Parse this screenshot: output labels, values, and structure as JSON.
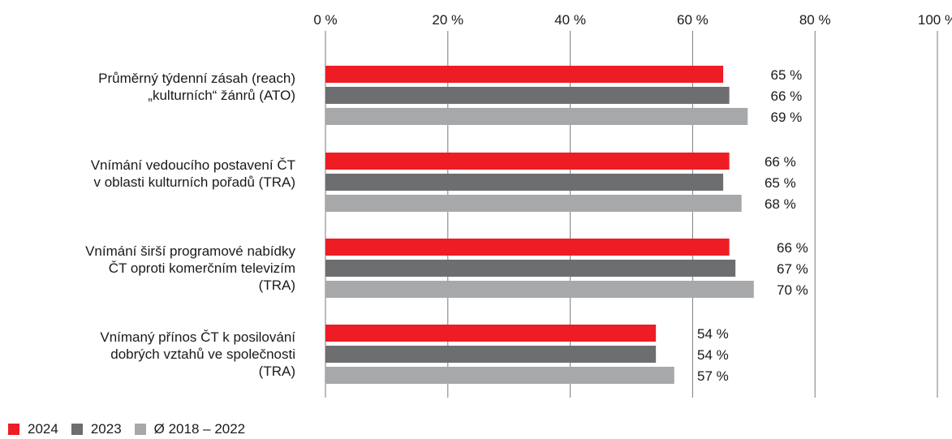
{
  "chart_data": {
    "type": "bar",
    "orientation": "horizontal",
    "x_ticks": [
      "0 %",
      "20 %",
      "40 %",
      "60 %",
      "80 %",
      "100 %"
    ],
    "x_tick_values": [
      0,
      20,
      40,
      60,
      80,
      100
    ],
    "xlim": [
      0,
      100
    ],
    "grid": true,
    "legend_position": "bottom-left",
    "categories": [
      [
        "Průměrný týdenní zásah (reach)",
        "„kulturních“ žánrů (ATO)"
      ],
      [
        "Vnímání vedoucího postavení ČT",
        "v oblasti kulturních pořadů (TRA)"
      ],
      [
        "Vnímání širší programové nabídky",
        "ČT oproti komerčním televizím",
        "(TRA)"
      ],
      [
        "Vnímaný přínos ČT k posilování",
        "dobrých vztahů ve společnosti",
        "(TRA)"
      ]
    ],
    "series": [
      {
        "name": "2024",
        "color": "#ee1c25",
        "values": [
          65,
          66,
          66,
          54
        ],
        "labels": [
          "65 %",
          "66 %",
          "66 %",
          "54 %"
        ]
      },
      {
        "name": "2023",
        "color": "#6d6e70",
        "values": [
          66,
          65,
          67,
          54
        ],
        "labels": [
          "66 %",
          "65 %",
          "67 %",
          "54 %"
        ]
      },
      {
        "name": "Ø 2018 – 2022",
        "color": "#a7a8aa",
        "values": [
          69,
          68,
          70,
          57
        ],
        "labels": [
          "69 %",
          "68 %",
          "70 %",
          "57 %"
        ]
      }
    ]
  }
}
